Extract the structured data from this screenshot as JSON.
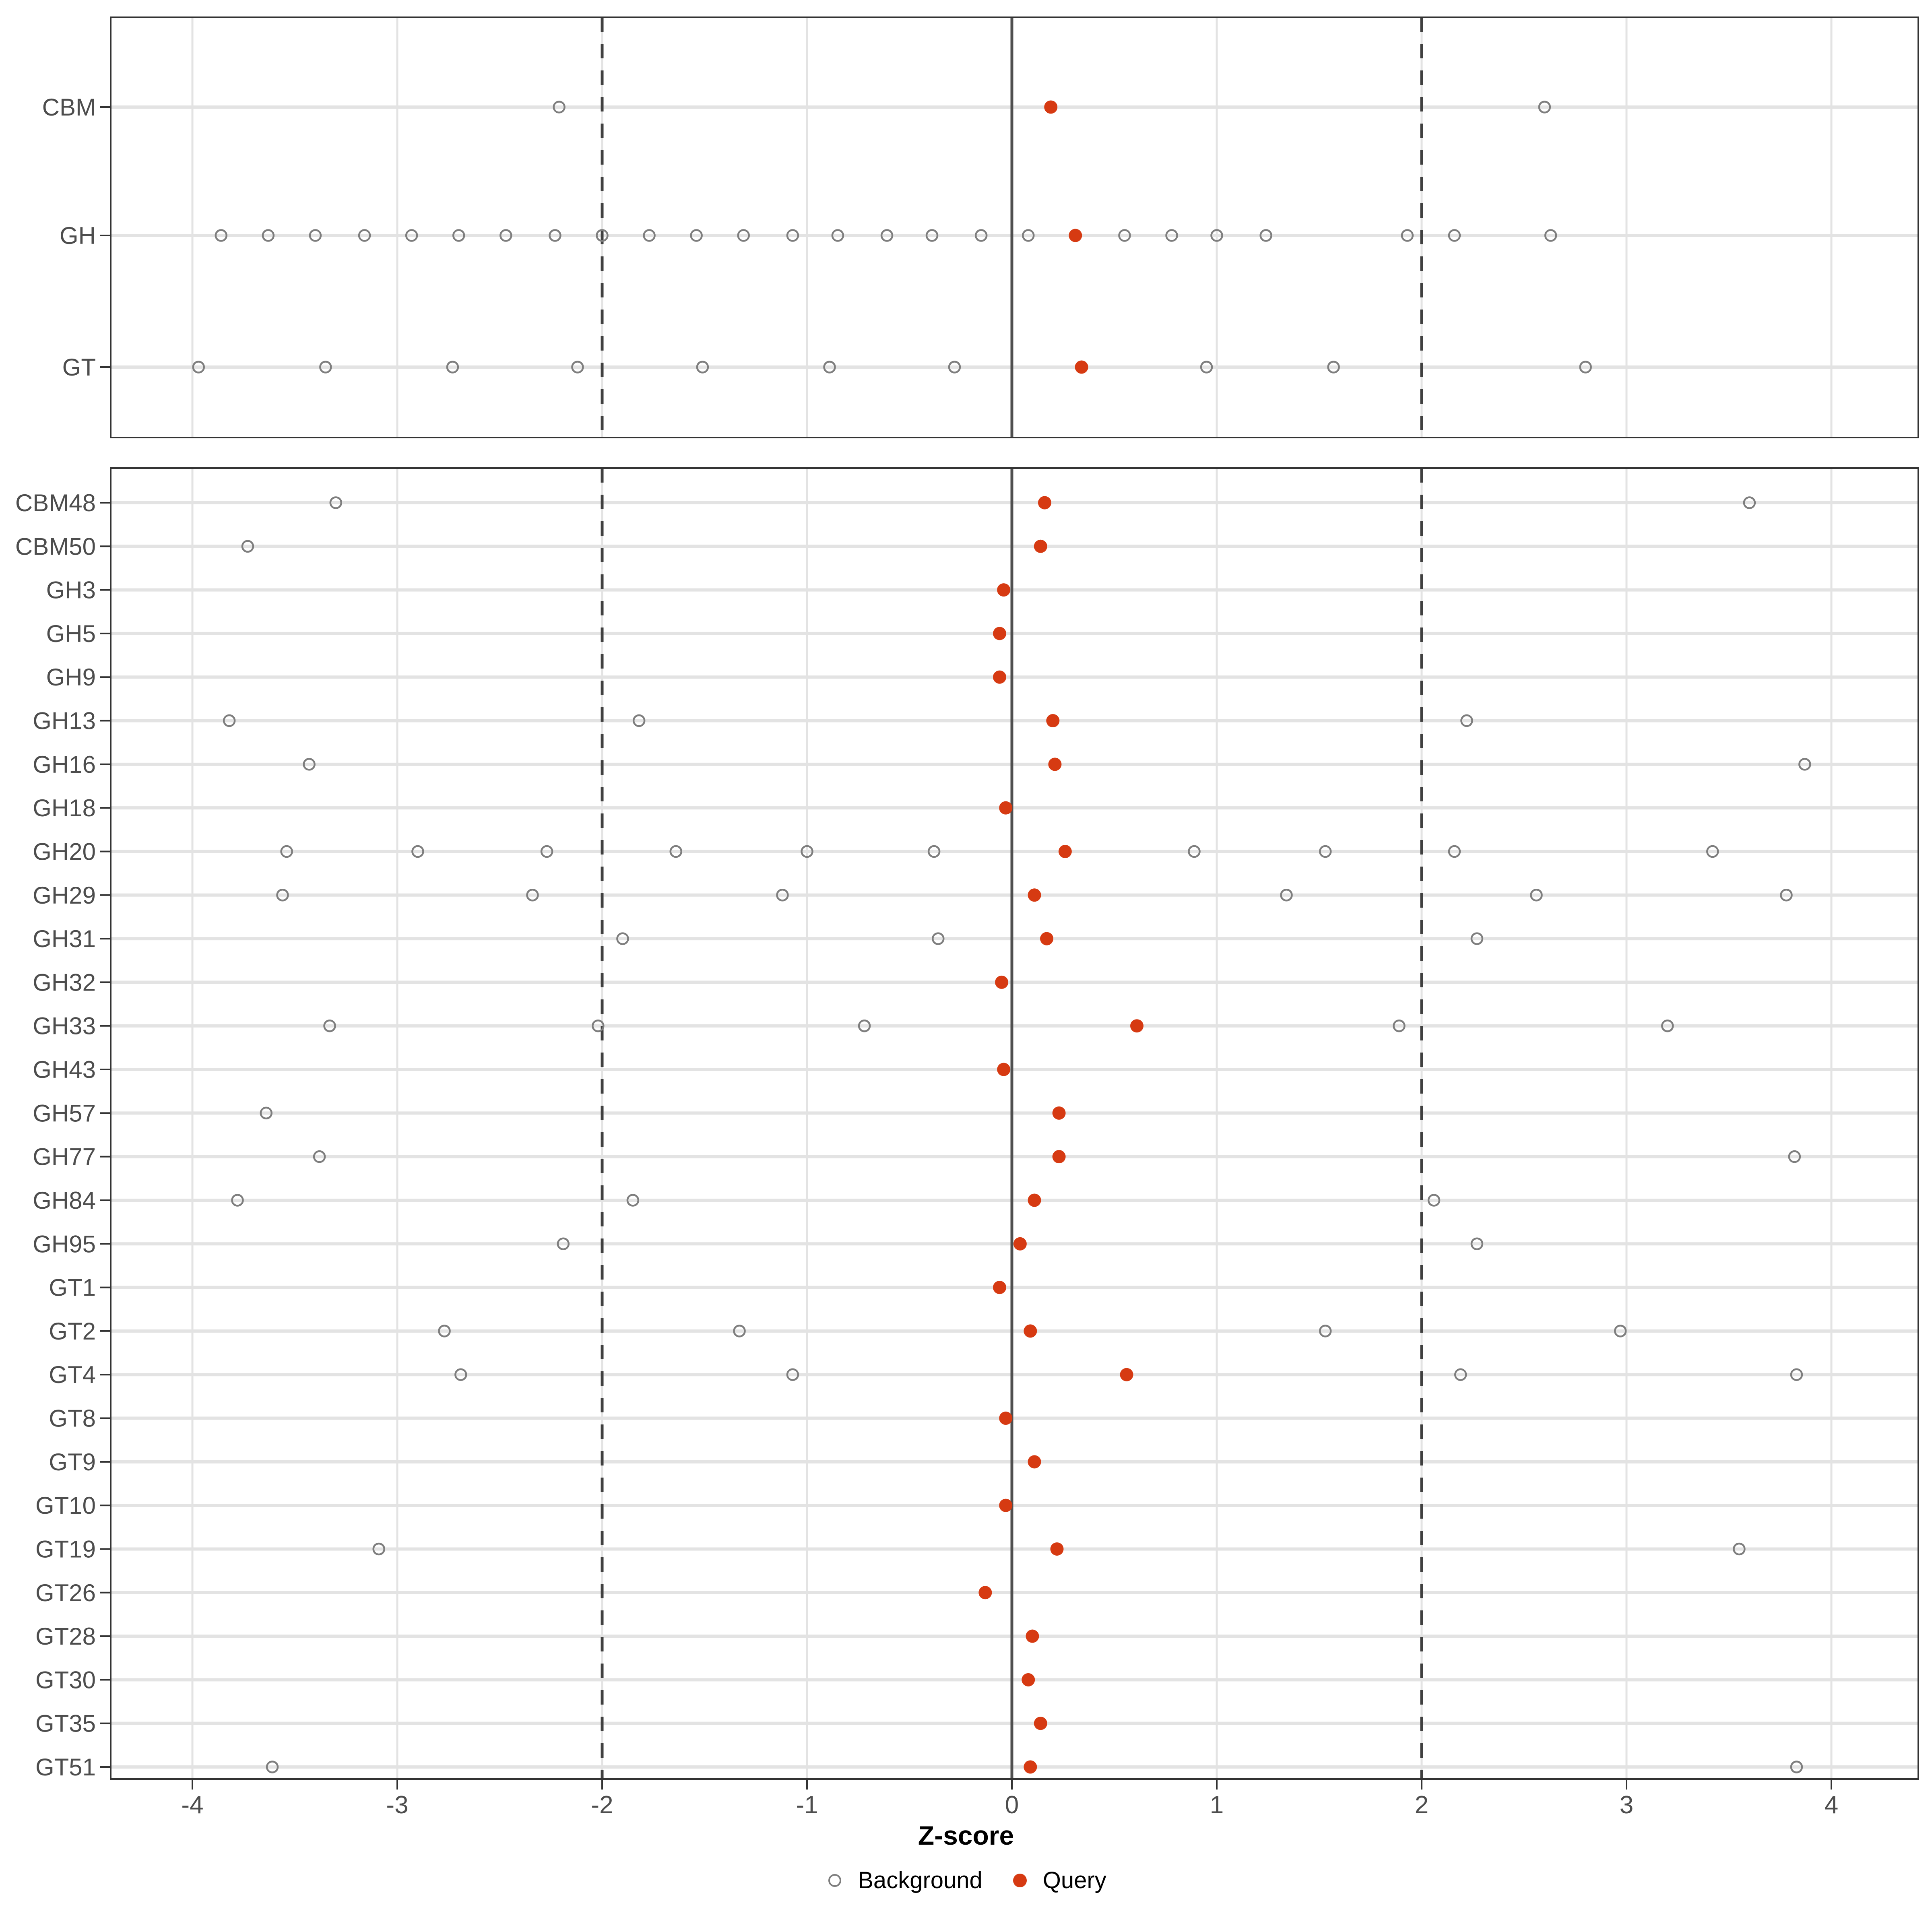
{
  "figure": {
    "background": "#FFFFFF"
  },
  "colors": {
    "query": "#D63A12",
    "background_stroke": "#7E7E7E",
    "grid": "#E3E3E3",
    "axis_text": "#4D4D4D",
    "panel_border": "#333333",
    "zero_line": "#4F4F4F",
    "dashed_line": "#404040",
    "tick": "#333333",
    "legend_text": "#000000",
    "x_title_color": "#000000"
  },
  "axis": {
    "x_title": "Z-score"
  },
  "legend": {
    "items": [
      {
        "label": "Background",
        "marker": "open-circle"
      },
      {
        "label": "Query",
        "marker": "filled-circle"
      }
    ]
  },
  "chart_data": {
    "type": "scatter",
    "subtype": "horizontal-dot-plot",
    "xlabel": "Z-score",
    "x_ticks": [
      -4,
      -3,
      -2,
      -1,
      0,
      1,
      2,
      3,
      4
    ],
    "x_domain": [
      -4.4,
      4.43
    ],
    "grid": "major-vertical-at-integers-and-horizontal-per-category",
    "legend_position": "bottom-center",
    "reference_lines": {
      "solid_at": 0,
      "dashed_at": [
        -2,
        2
      ]
    },
    "panels": [
      {
        "id": "summary",
        "rows": [
          {
            "label": "CBM",
            "query": 0.19,
            "background": [
              -2.21,
              2.6
            ]
          },
          {
            "label": "GH",
            "query": 0.31,
            "background": [
              -3.86,
              -3.63,
              -3.4,
              -3.16,
              -2.93,
              -2.7,
              -2.47,
              -2.23,
              -2.0,
              -1.77,
              -1.54,
              -1.31,
              -1.07,
              -0.85,
              -0.61,
              -0.39,
              -0.15,
              0.08,
              0.55,
              0.78,
              1.0,
              1.24,
              1.93,
              2.16,
              2.63
            ]
          },
          {
            "label": "GT",
            "query": 0.34,
            "background": [
              -3.97,
              -3.35,
              -2.73,
              -2.12,
              -1.51,
              -0.89,
              -0.28,
              0.95,
              1.57,
              2.8
            ]
          }
        ]
      },
      {
        "id": "families",
        "rows": [
          {
            "label": "CBM48",
            "query": 0.16,
            "background": [
              -3.3,
              3.6
            ]
          },
          {
            "label": "CBM50",
            "query": 0.14,
            "background": [
              -3.73
            ]
          },
          {
            "label": "GH3",
            "query": -0.04,
            "background": []
          },
          {
            "label": "GH5",
            "query": -0.06,
            "background": []
          },
          {
            "label": "GH9",
            "query": -0.06,
            "background": []
          },
          {
            "label": "GH13",
            "query": 0.2,
            "background": [
              -3.82,
              -1.82,
              2.22
            ]
          },
          {
            "label": "GH16",
            "query": 0.21,
            "background": [
              -3.43,
              3.87
            ]
          },
          {
            "label": "GH18",
            "query": -0.03,
            "background": []
          },
          {
            "label": "GH20",
            "query": 0.26,
            "background": [
              -3.54,
              -2.9,
              -2.27,
              -1.64,
              -1.0,
              -0.38,
              0.89,
              1.53,
              2.16,
              3.42
            ]
          },
          {
            "label": "GH29",
            "query": 0.11,
            "background": [
              -3.56,
              -2.34,
              -1.12,
              1.34,
              2.56,
              3.78
            ]
          },
          {
            "label": "GH31",
            "query": 0.17,
            "background": [
              -1.9,
              -0.36,
              2.27
            ]
          },
          {
            "label": "GH32",
            "query": -0.05,
            "background": []
          },
          {
            "label": "GH33",
            "query": 0.61,
            "background": [
              -3.33,
              -2.02,
              -0.72,
              1.89,
              3.2
            ]
          },
          {
            "label": "GH43",
            "query": -0.04,
            "background": []
          },
          {
            "label": "GH57",
            "query": 0.23,
            "background": [
              -3.64
            ]
          },
          {
            "label": "GH77",
            "query": 0.23,
            "background": [
              -3.38,
              3.82
            ]
          },
          {
            "label": "GH84",
            "query": 0.11,
            "background": [
              -3.78,
              -1.85,
              2.06
            ]
          },
          {
            "label": "GH95",
            "query": 0.04,
            "background": [
              -2.19,
              2.27
            ]
          },
          {
            "label": "GT1",
            "query": -0.06,
            "background": []
          },
          {
            "label": "GT2",
            "query": 0.09,
            "background": [
              -2.77,
              -1.33,
              1.53,
              2.97
            ]
          },
          {
            "label": "GT4",
            "query": 0.56,
            "background": [
              -2.69,
              -1.07,
              2.19,
              3.83
            ]
          },
          {
            "label": "GT8",
            "query": -0.03,
            "background": []
          },
          {
            "label": "GT9",
            "query": 0.11,
            "background": []
          },
          {
            "label": "GT10",
            "query": -0.03,
            "background": []
          },
          {
            "label": "GT19",
            "query": 0.22,
            "background": [
              -3.09,
              3.55
            ]
          },
          {
            "label": "GT26",
            "query": -0.13,
            "background": []
          },
          {
            "label": "GT28",
            "query": 0.1,
            "background": []
          },
          {
            "label": "GT30",
            "query": 0.08,
            "background": []
          },
          {
            "label": "GT35",
            "query": 0.14,
            "background": []
          },
          {
            "label": "GT51",
            "query": 0.09,
            "background": [
              -3.61,
              3.83
            ]
          }
        ]
      }
    ]
  }
}
